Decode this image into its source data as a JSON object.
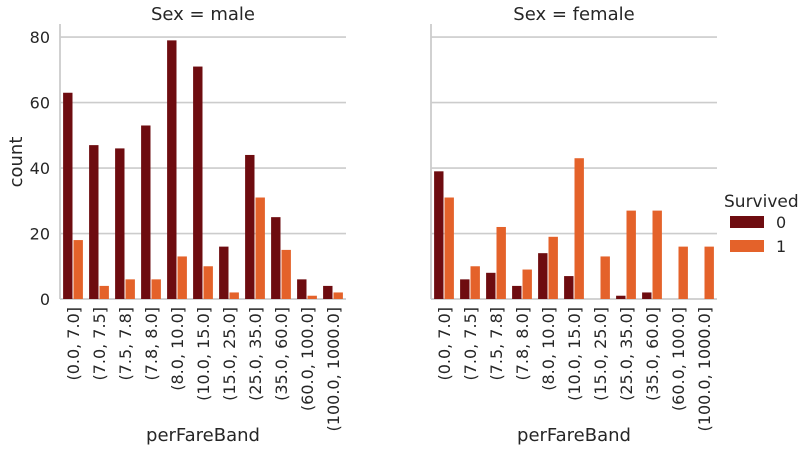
{
  "chart_data": {
    "type": "bar",
    "xlabel": "perFareBand",
    "ylabel": "count",
    "ylim": [
      0,
      84
    ],
    "yticks": [
      0,
      20,
      40,
      60,
      80
    ],
    "grid": "horizontal",
    "legend": {
      "title": "Survived",
      "placement": "right",
      "entries": [
        {
          "label": "0",
          "color": "#6e0c10"
        },
        {
          "label": "1",
          "color": "#e4622a"
        }
      ]
    },
    "categories": [
      "(0.0, 7.0]",
      "(7.0, 7.5]",
      "(7.5, 7.8]",
      "(7.8, 8.0]",
      "(8.0, 10.0]",
      "(10.0, 15.0]",
      "(15.0, 25.0]",
      "(25.0, 35.0]",
      "(35.0, 60.0]",
      "(60.0, 100.0]",
      "(100.0, 1000.0]"
    ],
    "panels": [
      {
        "title": "Sex = male",
        "series": [
          {
            "name": "0",
            "values": [
              63,
              47,
              46,
              53,
              79,
              71,
              16,
              44,
              25,
              6,
              4
            ]
          },
          {
            "name": "1",
            "values": [
              18,
              4,
              6,
              6,
              13,
              10,
              2,
              31,
              15,
              1,
              2
            ]
          }
        ]
      },
      {
        "title": "Sex = female",
        "series": [
          {
            "name": "0",
            "values": [
              39,
              6,
              8,
              4,
              14,
              7,
              0,
              1,
              2,
              0,
              0
            ]
          },
          {
            "name": "1",
            "values": [
              31,
              10,
              22,
              9,
              19,
              43,
              13,
              27,
              27,
              16,
              16
            ]
          }
        ]
      }
    ]
  }
}
